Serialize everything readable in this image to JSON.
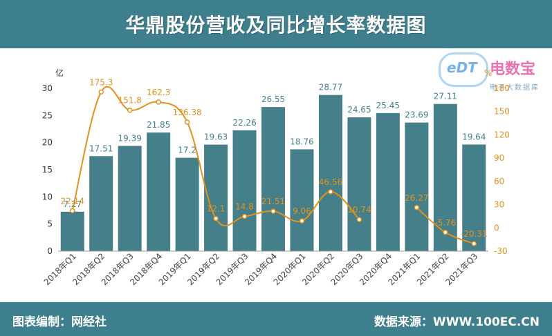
{
  "header": {
    "title": "华鼎股份营收及同比增长率数据图"
  },
  "footer": {
    "editor": "图表编制：网经社",
    "source": "数据来源：WWW.100EC.CN"
  },
  "watermark": {
    "logo_text": "eDT",
    "brand": "电数宝",
    "sub": "电子大数据库"
  },
  "colors": {
    "header_bg": "#3d7f8c",
    "bar": "#457f8a",
    "line": "#e1921b",
    "left_axis_text": "#333333",
    "right_axis_text": "#e1921b"
  },
  "chart_data": {
    "type": "bar+line",
    "categories": [
      "2018年Q1",
      "2018年Q2",
      "2018年Q3",
      "2018年Q4",
      "2019年Q1",
      "2019年Q2",
      "2019年Q3",
      "2019年Q4",
      "2020年Q1",
      "2020年Q2",
      "2020年Q3",
      "2020年Q4",
      "2021年Q1",
      "2021年Q2",
      "2021年Q3"
    ],
    "bar_series": {
      "values": [
        7.27,
        17.51,
        19.39,
        21.85,
        17.2,
        19.63,
        22.26,
        26.55,
        18.76,
        28.77,
        24.65,
        25.45,
        23.69,
        27.11,
        19.64
      ],
      "labels": [
        "7.27",
        "17.51",
        "19.39",
        "21.85",
        "17.2",
        "19.63",
        "22.26",
        "26.55",
        "18.76",
        "28.77",
        "24.65",
        "25.45",
        "23.69",
        "27.11",
        "19.64"
      ]
    },
    "line_series": {
      "values": [
        22.14,
        175.3,
        151.8,
        162.3,
        136.38,
        12.1,
        14.8,
        21.51,
        9.06,
        46.56,
        10.74,
        null,
        26.27,
        -5.76,
        -20.31
      ],
      "labels": [
        "22.14",
        "175.3",
        "151.8",
        "162.3",
        "136.38",
        "12.1",
        "14.8",
        "21.51",
        "9.06",
        "46.56",
        "10.74",
        "",
        "26.27",
        "-5.76",
        "-20.31"
      ]
    },
    "y_left": {
      "unit": "亿",
      "min": 0,
      "max": 30,
      "ticks": [
        "0",
        "5",
        "10",
        "15",
        "20",
        "25",
        "30"
      ]
    },
    "y_right": {
      "unit": "%",
      "min": -30,
      "max": 180,
      "ticks": [
        "-30",
        "0",
        "30",
        "60",
        "90",
        "120",
        "150",
        "180"
      ]
    },
    "grid": false,
    "legend": "none"
  }
}
